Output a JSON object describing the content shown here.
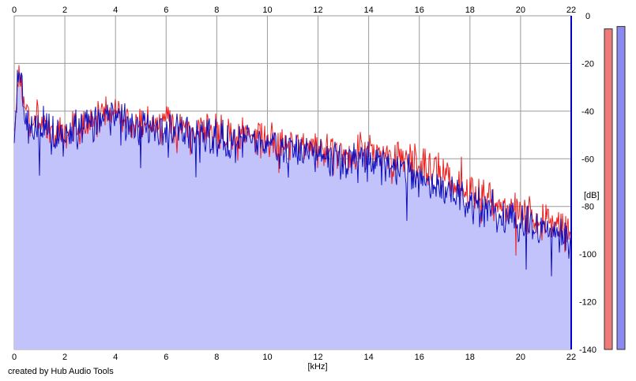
{
  "credit": "created by Hub Audio Tools",
  "chart_data": {
    "type": "area",
    "title": "",
    "xlabel": "[kHz]",
    "ylabel": "[dB]",
    "xlim": [
      0,
      22
    ],
    "ylim": [
      -140,
      0
    ],
    "x_ticks": [
      "0",
      "2",
      "4",
      "6",
      "8",
      "10",
      "12",
      "14",
      "16",
      "18",
      "20",
      "22"
    ],
    "y_ticks": [
      "0",
      "-20",
      "-40",
      "-60",
      "-80",
      "-100",
      "-120",
      "-140"
    ],
    "grid": true,
    "series": [
      {
        "x": [
          0,
          0.2,
          0.4,
          0.6,
          0.8,
          1,
          1.5,
          2,
          2.5,
          3,
          3.5,
          4,
          4.5,
          5,
          5.5,
          6,
          6.5,
          7,
          7.5,
          8,
          8.5,
          9,
          9.5,
          10,
          10.5,
          11,
          11.5,
          12,
          12.5,
          13,
          13.5,
          14,
          14.5,
          15,
          15.5,
          16,
          16.5,
          17,
          17.5,
          18,
          18.5,
          19,
          19.5,
          20,
          20.5,
          21,
          21.5,
          22
        ],
        "values": [
          -48,
          -22,
          -38,
          -44,
          -43,
          -45,
          -49,
          -50,
          -46,
          -44,
          -41,
          -39,
          -43,
          -44,
          -44,
          -46,
          -46,
          -47,
          -47,
          -48,
          -51,
          -51,
          -50,
          -52,
          -54,
          -53,
          -54,
          -55,
          -56,
          -57,
          -56,
          -57,
          -59,
          -60,
          -61,
          -62,
          -65,
          -66,
          -70,
          -74,
          -76,
          -78,
          -81,
          -82,
          -85,
          -86,
          -88,
          -91
        ],
        "color": "#ee1c1c"
      },
      {
        "x": [
          0,
          0.2,
          0.4,
          0.6,
          0.8,
          1,
          1.5,
          2,
          2.5,
          3,
          3.5,
          4,
          4.5,
          5,
          5.5,
          6,
          6.5,
          7,
          7.5,
          8,
          8.5,
          9,
          9.5,
          10,
          10.5,
          11,
          11.5,
          12,
          12.5,
          13,
          13.5,
          14,
          14.5,
          15,
          15.5,
          16,
          16.5,
          17,
          17.5,
          18,
          18.5,
          19,
          19.5,
          20,
          20.5,
          21,
          21.5,
          22
        ],
        "values": [
          -53,
          -20,
          -41,
          -47,
          -46,
          -48,
          -51,
          -52,
          -49,
          -46,
          -43,
          -41,
          -46,
          -46,
          -47,
          -48,
          -49,
          -50,
          -50,
          -51,
          -53,
          -53,
          -53,
          -55,
          -56,
          -56,
          -57,
          -58,
          -60,
          -60,
          -60,
          -61,
          -63,
          -64,
          -65,
          -67,
          -70,
          -71,
          -74,
          -78,
          -80,
          -82,
          -85,
          -86,
          -89,
          -90,
          -92,
          -97
        ],
        "color": "#1010c0",
        "fill": "#c3c3fb"
      }
    ],
    "level_meters": [
      {
        "level_db": -5.5,
        "color": "#ef7a7a"
      },
      {
        "level_db": -4.5,
        "color": "#8a8af0"
      }
    ]
  }
}
